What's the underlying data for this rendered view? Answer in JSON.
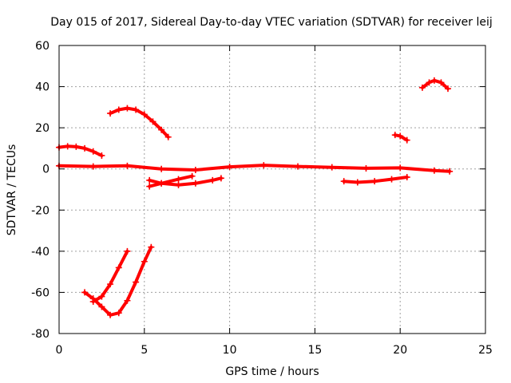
{
  "chart_data": {
    "type": "line",
    "title": "Day 015 of 2017, Sidereal Day-to-day VTEC variation (SDTVAR) for receiver leij",
    "xlabel": "GPS time / hours",
    "ylabel": "SDTVAR / TECUs",
    "xlim": [
      0,
      25
    ],
    "ylim": [
      -80,
      60
    ],
    "xticks": [
      0,
      5,
      10,
      15,
      20,
      25
    ],
    "yticks": [
      -80,
      -60,
      -40,
      -20,
      0,
      20,
      40,
      60
    ],
    "grid": true,
    "legend": "none",
    "color": "#ff0000",
    "series": [
      {
        "x": [
          0.0,
          2.0,
          4.0,
          6.0,
          8.0,
          10.0,
          12.0,
          14.0,
          16.0,
          18.0,
          20.0,
          22.0,
          22.9
        ],
        "y": [
          1.5,
          1.2,
          1.5,
          0.0,
          -0.5,
          1.0,
          1.8,
          1.2,
          0.8,
          0.3,
          0.5,
          -0.8,
          -1.2
        ]
      },
      {
        "x": [
          0.0,
          0.5,
          1.0,
          1.5,
          2.0,
          2.5
        ],
        "y": [
          10.5,
          11.0,
          10.8,
          10.0,
          8.5,
          6.5
        ]
      },
      {
        "x": [
          3.0,
          3.5,
          4.0,
          4.5,
          5.0,
          5.5,
          6.0,
          6.4
        ],
        "y": [
          27.0,
          28.8,
          29.5,
          28.8,
          26.5,
          23.0,
          19.0,
          15.5
        ]
      },
      {
        "x": [
          5.3,
          6.0,
          7.0,
          7.8
        ],
        "y": [
          -8.5,
          -7.0,
          -5.0,
          -3.5
        ]
      },
      {
        "x": [
          5.3,
          6.0,
          7.0,
          8.0,
          9.0,
          9.5
        ],
        "y": [
          -5.5,
          -7.0,
          -7.8,
          -7.0,
          -5.5,
          -4.5
        ]
      },
      {
        "x": [
          1.5,
          2.0,
          2.5,
          3.0,
          3.5,
          4.0,
          4.5,
          5.0,
          5.4
        ],
        "y": [
          -60.0,
          -63.0,
          -67.0,
          -71.0,
          -70.0,
          -64.0,
          -55.0,
          -45.0,
          -38.0
        ]
      },
      {
        "x": [
          2.0,
          2.5,
          3.0,
          3.5,
          4.0
        ],
        "y": [
          -64.5,
          -62.0,
          -56.0,
          -48.0,
          -40.0
        ]
      },
      {
        "x": [
          16.7,
          17.5,
          18.5,
          19.5,
          20.4
        ],
        "y": [
          -6.0,
          -6.5,
          -6.0,
          -5.0,
          -4.0
        ]
      },
      {
        "x": [
          19.7,
          20.0,
          20.4
        ],
        "y": [
          16.5,
          16.0,
          14.0
        ]
      },
      {
        "x": [
          21.3,
          21.7,
          22.0,
          22.4,
          22.8
        ],
        "y": [
          39.5,
          42.0,
          43.0,
          42.0,
          39.0
        ]
      }
    ]
  }
}
